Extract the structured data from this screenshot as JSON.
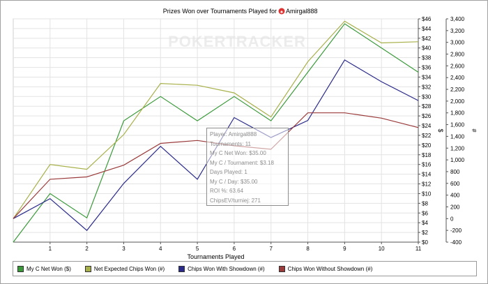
{
  "chart_data": {
    "type": "line",
    "title": "Prizes Won over Tournaments Played for",
    "player": "Amirgal888",
    "watermark": "POKERTRACKER",
    "xlabel": "Tournaments Played",
    "ylabel_left": "$",
    "ylabel_right": "#",
    "x": [
      0,
      1,
      2,
      3,
      4,
      5,
      6,
      7,
      8,
      9,
      10,
      11
    ],
    "xlim": [
      0,
      11
    ],
    "x_ticks": [
      "1",
      "2",
      "3",
      "4",
      "5",
      "6",
      "7",
      "8",
      "9",
      "10",
      "11"
    ],
    "ylim_left": [
      0,
      46
    ],
    "ylim_right": [
      -400,
      3400
    ],
    "y_left_ticks": [
      "$0",
      "$2",
      "$4",
      "$6",
      "$8",
      "$10",
      "$12",
      "$14",
      "$16",
      "$18",
      "$20",
      "$22",
      "$24",
      "$26",
      "$28",
      "$30",
      "$32",
      "$34",
      "$36",
      "$38",
      "$40",
      "$42",
      "$44",
      "$46"
    ],
    "y_right_ticks": [
      "-400",
      "-200",
      "0",
      "200",
      "400",
      "600",
      "800",
      "1,000",
      "1,200",
      "1,400",
      "1,600",
      "1,800",
      "2,000",
      "2,200",
      "2,400",
      "2,600",
      "2,800",
      "3,000",
      "3,200",
      "3,400"
    ],
    "grid": true,
    "legend_position": "bottom",
    "series": [
      {
        "name": "My C Net Won ($)",
        "axis": "left",
        "color": "#3a9a3a",
        "values": [
          0,
          10,
          5,
          25,
          30,
          25,
          30,
          25,
          35,
          45,
          40,
          35
        ]
      },
      {
        "name": "Net Expected Chips Won (#)",
        "axis": "right",
        "color": "#a8b04a",
        "values": [
          0,
          920,
          840,
          1430,
          2300,
          2270,
          2140,
          1730,
          2670,
          3360,
          2990,
          3010
        ]
      },
      {
        "name": "Chips Won With Showdown (#)",
        "axis": "right",
        "color": "#2a2a8a",
        "values": [
          0,
          340,
          -200,
          600,
          1230,
          670,
          1720,
          1380,
          1670,
          2700,
          2330,
          2010
        ]
      },
      {
        "name": "Chips Won Without Showdown (#)",
        "axis": "right",
        "color": "#9a3a3a",
        "values": [
          0,
          670,
          710,
          910,
          1280,
          1330,
          1240,
          1180,
          1800,
          1800,
          1710,
          1550
        ]
      }
    ],
    "tooltip": [
      "Player: Amirgal888",
      "Tournaments: 11",
      "My C Net Won: $35.00",
      "My C / Tournament: $3.18",
      "Days Played: 1",
      "My C / Day: $35.00",
      "ROI %: 63.64",
      "ChipsEV/turniej: 271"
    ]
  }
}
